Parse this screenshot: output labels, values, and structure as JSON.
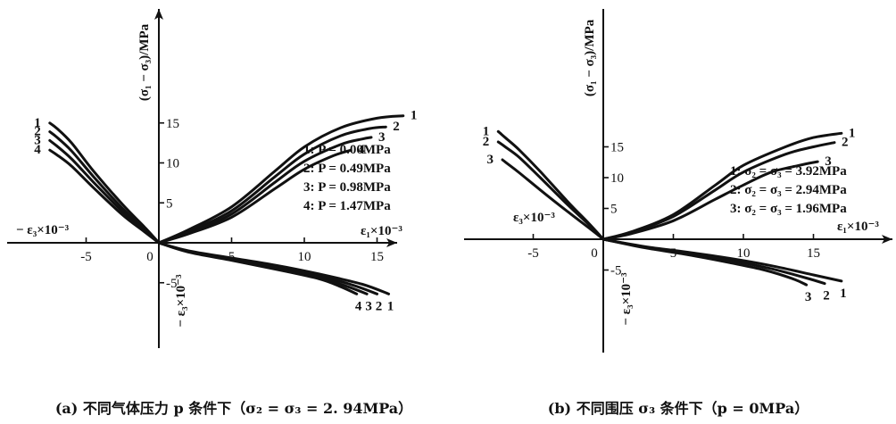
{
  "chart_data": [
    {
      "type": "line",
      "caption": "(a) 不同气体压力 p 条件下（σ₂ = σ₃ = 2. 94MPa）",
      "ylabel": "(σ₁ − σ₃)/MPa",
      "xlabel_right": "ε₁×10⁻³",
      "xlabel_left": "− ε₃×10⁻³",
      "ylabel_lower": "− ε₃×10⁻³",
      "xlim": [
        -9,
        17.5
      ],
      "ylim": [
        -7.5,
        17
      ],
      "x_ticks": [
        -5,
        0,
        5,
        10,
        15
      ],
      "x_tick_labels": [
        "-5",
        "0",
        "5",
        "10",
        "15"
      ],
      "y_ticks": [
        -5,
        5,
        10,
        15
      ],
      "y_tick_labels": [
        "-5",
        "5",
        "10",
        "15"
      ],
      "legend": [
        "1: P = 0.00MPa",
        "2: P = 0.49MPa",
        "3: P = 0.98MPa",
        "4: P = 1.47MPa"
      ],
      "series": [
        {
          "name": "1",
          "axial": [
            [
              0,
              0
            ],
            [
              2,
              1.6
            ],
            [
              5,
              4.5
            ],
            [
              8,
              9.0
            ],
            [
              10,
              12.0
            ],
            [
              12.5,
              14.4
            ],
            [
              15,
              15.6
            ],
            [
              16.8,
              15.9
            ]
          ],
          "radial": [
            [
              0,
              0
            ],
            [
              -1,
              2.0
            ],
            [
              -2.5,
              4.8
            ],
            [
              -4.5,
              9.0
            ],
            [
              -6,
              12.5
            ],
            [
              -7,
              14.3
            ],
            [
              -7.5,
              15.0
            ]
          ],
          "volumetric": [
            [
              0,
              0
            ],
            [
              2,
              -1.0
            ],
            [
              5,
              -1.9
            ],
            [
              8,
              -2.8
            ],
            [
              11,
              -3.9
            ],
            [
              14,
              -5.2
            ],
            [
              15.8,
              -6.4
            ]
          ]
        },
        {
          "name": "2",
          "axial": [
            [
              0,
              0
            ],
            [
              2,
              1.4
            ],
            [
              5,
              4.0
            ],
            [
              8,
              8.3
            ],
            [
              10,
              11.1
            ],
            [
              12.5,
              13.4
            ],
            [
              14.5,
              14.3
            ],
            [
              15.6,
              14.5
            ]
          ],
          "radial": [
            [
              0,
              0
            ],
            [
              -1,
              1.8
            ],
            [
              -2.5,
              4.3
            ],
            [
              -4.5,
              8.3
            ],
            [
              -6,
              11.5
            ],
            [
              -7,
              13.2
            ],
            [
              -7.5,
              13.9
            ]
          ],
          "volumetric": [
            [
              0,
              0
            ],
            [
              2,
              -1.05
            ],
            [
              5,
              -2.0
            ],
            [
              8,
              -3.0
            ],
            [
              11,
              -4.1
            ],
            [
              13.5,
              -5.4
            ],
            [
              15,
              -6.4
            ]
          ]
        },
        {
          "name": "3",
          "axial": [
            [
              0,
              0
            ],
            [
              2,
              1.25
            ],
            [
              5,
              3.6
            ],
            [
              8,
              7.6
            ],
            [
              10,
              10.2
            ],
            [
              12.5,
              12.3
            ],
            [
              14,
              13.0
            ],
            [
              14.6,
              13.2
            ]
          ],
          "radial": [
            [
              0,
              0
            ],
            [
              -1,
              1.6
            ],
            [
              -2.5,
              3.9
            ],
            [
              -4.5,
              7.6
            ],
            [
              -6,
              10.5
            ],
            [
              -7,
              12.1
            ],
            [
              -7.5,
              12.8
            ]
          ],
          "volumetric": [
            [
              0,
              0
            ],
            [
              2,
              -1.1
            ],
            [
              5,
              -2.1
            ],
            [
              8,
              -3.1
            ],
            [
              11,
              -4.3
            ],
            [
              13,
              -5.5
            ],
            [
              14.3,
              -6.4
            ]
          ]
        },
        {
          "name": "4",
          "axial": [
            [
              0,
              0
            ],
            [
              2,
              1.1
            ],
            [
              5,
              3.2
            ],
            [
              8,
              6.8
            ],
            [
              10,
              9.2
            ],
            [
              12,
              10.9
            ],
            [
              13.2,
              11.6
            ]
          ],
          "radial": [
            [
              0,
              0
            ],
            [
              -1,
              1.4
            ],
            [
              -2.5,
              3.5
            ],
            [
              -4.5,
              6.9
            ],
            [
              -6,
              9.6
            ],
            [
              -7,
              11.0
            ],
            [
              -7.5,
              11.6
            ]
          ],
          "volumetric": [
            [
              0,
              0
            ],
            [
              2,
              -1.15
            ],
            [
              5,
              -2.2
            ],
            [
              8,
              -3.3
            ],
            [
              11,
              -4.5
            ],
            [
              12.5,
              -5.5
            ],
            [
              13.6,
              -6.4
            ]
          ]
        }
      ]
    },
    {
      "type": "line",
      "caption": "(b) 不同围压 σ₃ 条件下（p = 0MPa）",
      "ylabel": "(σ₁ − σ₃)/MPa",
      "xlabel_right": "ε₁×10⁻³",
      "xlabel_left": "ε₃×10⁻³",
      "ylabel_lower": "− ε₃×10⁻³",
      "xlim": [
        -9.5,
        18.5
      ],
      "ylim": [
        -7.5,
        19
      ],
      "x_ticks": [
        -5,
        0,
        5,
        10,
        15
      ],
      "x_tick_labels": [
        "-5",
        "0",
        "5",
        "10",
        "15"
      ],
      "y_ticks": [
        -5,
        5,
        10,
        15
      ],
      "y_tick_labels": [
        "-5",
        "5",
        "10",
        "15"
      ],
      "legend": [
        "1:   σ₂ = σ₃ = 3.92MPa",
        "2:   σ₂ = σ₃ = 2.94MPa",
        "3:   σ₂ = σ₃ = 1.96MPa"
      ],
      "series": [
        {
          "name": "1",
          "axial": [
            [
              0,
              0
            ],
            [
              2,
              1.2
            ],
            [
              5,
              4.0
            ],
            [
              8,
              8.8
            ],
            [
              10,
              12.0
            ],
            [
              13,
              15.0
            ],
            [
              15,
              16.5
            ],
            [
              17,
              17.2
            ]
          ],
          "radial": [
            [
              0,
              0
            ],
            [
              -1,
              2.5
            ],
            [
              -2.5,
              6.0
            ],
            [
              -4.5,
              11.0
            ],
            [
              -6,
              14.5
            ],
            [
              -7,
              16.5
            ],
            [
              -7.5,
              17.5
            ]
          ],
          "volumetric": [
            [
              0,
              0
            ],
            [
              3,
              -1.2
            ],
            [
              6,
              -2.1
            ],
            [
              9,
              -3.1
            ],
            [
              12,
              -4.3
            ],
            [
              15,
              -5.8
            ],
            [
              17,
              -6.8
            ]
          ]
        },
        {
          "name": "2",
          "axial": [
            [
              0,
              0
            ],
            [
              2,
              1.1
            ],
            [
              5,
              3.7
            ],
            [
              8,
              8.0
            ],
            [
              10,
              10.9
            ],
            [
              13,
              13.8
            ],
            [
              15,
              15.0
            ],
            [
              16.5,
              15.7
            ]
          ],
          "radial": [
            [
              0,
              0
            ],
            [
              -1,
              2.3
            ],
            [
              -2.5,
              5.5
            ],
            [
              -4.5,
              10.0
            ],
            [
              -6,
              13.3
            ],
            [
              -7,
              15.0
            ],
            [
              -7.5,
              15.8
            ]
          ],
          "volumetric": [
            [
              0,
              0
            ],
            [
              3,
              -1.3
            ],
            [
              6,
              -2.3
            ],
            [
              9,
              -3.4
            ],
            [
              12,
              -4.8
            ],
            [
              14.5,
              -6.3
            ],
            [
              15.8,
              -7.2
            ]
          ]
        },
        {
          "name": "3",
          "axial": [
            [
              0,
              0
            ],
            [
              2,
              0.9
            ],
            [
              5,
              3.0
            ],
            [
              8,
              6.5
            ],
            [
              10,
              8.8
            ],
            [
              12,
              10.9
            ],
            [
              14,
              12.0
            ],
            [
              15.3,
              12.6
            ]
          ],
          "radial": [
            [
              0,
              0
            ],
            [
              -1,
              1.8
            ],
            [
              -2.5,
              4.4
            ],
            [
              -4.5,
              8.0
            ],
            [
              -6,
              10.8
            ],
            [
              -6.8,
              12.2
            ],
            [
              -7.2,
              12.9
            ]
          ],
          "volumetric": [
            [
              0,
              0
            ],
            [
              3,
              -1.4
            ],
            [
              6,
              -2.5
            ],
            [
              9,
              -3.8
            ],
            [
              11.5,
              -5.0
            ],
            [
              13.5,
              -6.4
            ],
            [
              14.5,
              -7.4
            ]
          ]
        }
      ]
    }
  ]
}
